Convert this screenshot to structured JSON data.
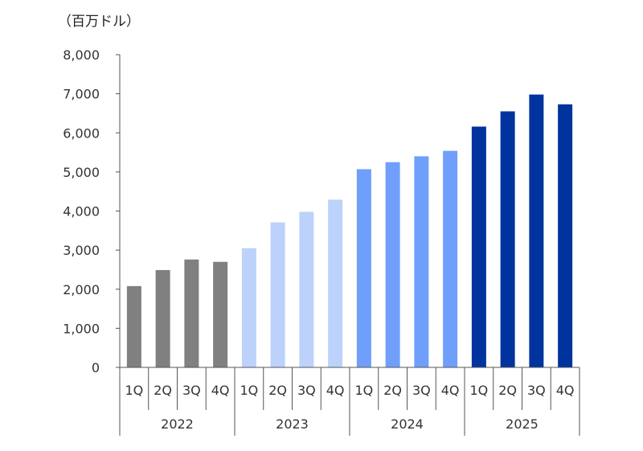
{
  "chart_data": {
    "type": "bar",
    "unit_label": "（百万ドル）",
    "ylim": [
      0,
      8000
    ],
    "y_ticks": [
      "0",
      "1,000",
      "2,000",
      "3,000",
      "4,000",
      "5,000",
      "6,000",
      "7,000",
      "8,000"
    ],
    "grid": false,
    "legend": "none",
    "groups": [
      {
        "year": "2022",
        "color": "#808080",
        "bars": [
          {
            "quarter": "1Q",
            "value": 2080
          },
          {
            "quarter": "2Q",
            "value": 2490
          },
          {
            "quarter": "3Q",
            "value": 2760
          },
          {
            "quarter": "4Q",
            "value": 2700
          }
        ]
      },
      {
        "year": "2023",
        "color": "#bcd2fb",
        "bars": [
          {
            "quarter": "1Q",
            "value": 3050
          },
          {
            "quarter": "2Q",
            "value": 3710
          },
          {
            "quarter": "3Q",
            "value": 3980
          },
          {
            "quarter": "4Q",
            "value": 4290
          }
        ]
      },
      {
        "year": "2024",
        "color": "#6f9ffb",
        "bars": [
          {
            "quarter": "1Q",
            "value": 5070
          },
          {
            "quarter": "2Q",
            "value": 5250
          },
          {
            "quarter": "3Q",
            "value": 5400
          },
          {
            "quarter": "4Q",
            "value": 5540
          }
        ]
      },
      {
        "year": "2025",
        "color": "#00339e",
        "bars": [
          {
            "quarter": "1Q",
            "value": 6160
          },
          {
            "quarter": "2Q",
            "value": 6550
          },
          {
            "quarter": "3Q",
            "value": 6980
          },
          {
            "quarter": "4Q",
            "value": 6730
          }
        ]
      }
    ]
  }
}
